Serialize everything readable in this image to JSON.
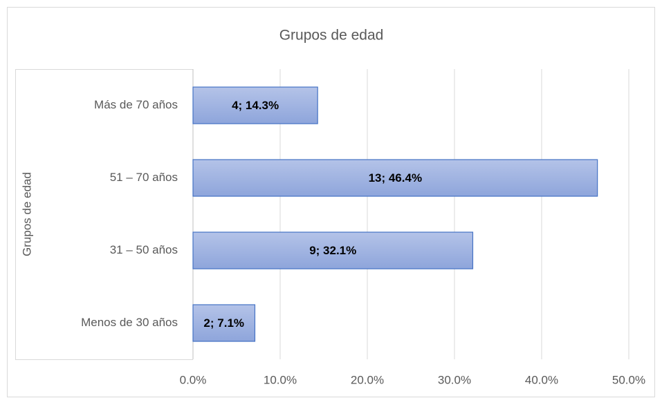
{
  "chart_data": {
    "type": "hbar",
    "title": "Grupos de edad",
    "y_label": "Grupos de edad",
    "categories": [
      "Más de 70 años",
      "51 – 70 años",
      "31 – 50 años",
      "Menos de 30 años"
    ],
    "values": [
      14.3,
      46.4,
      32.1,
      7.1
    ],
    "value_labels": [
      "4; 14.3%",
      "13; 46.4%",
      "9; 32.1%",
      "2; 7.1%"
    ],
    "color": "#9fb2e0",
    "edge_color": "#4472c4",
    "xlim": [
      0,
      50
    ],
    "xticks": [
      {
        "value": 0,
        "label": "0.0%"
      },
      {
        "value": 10,
        "label": "10.0%"
      },
      {
        "value": 20,
        "label": "20.0%"
      },
      {
        "value": 30,
        "label": "30.0%"
      },
      {
        "value": 40,
        "label": "40.0%"
      },
      {
        "value": 50,
        "label": "50.0%"
      }
    ],
    "grid": true
  }
}
